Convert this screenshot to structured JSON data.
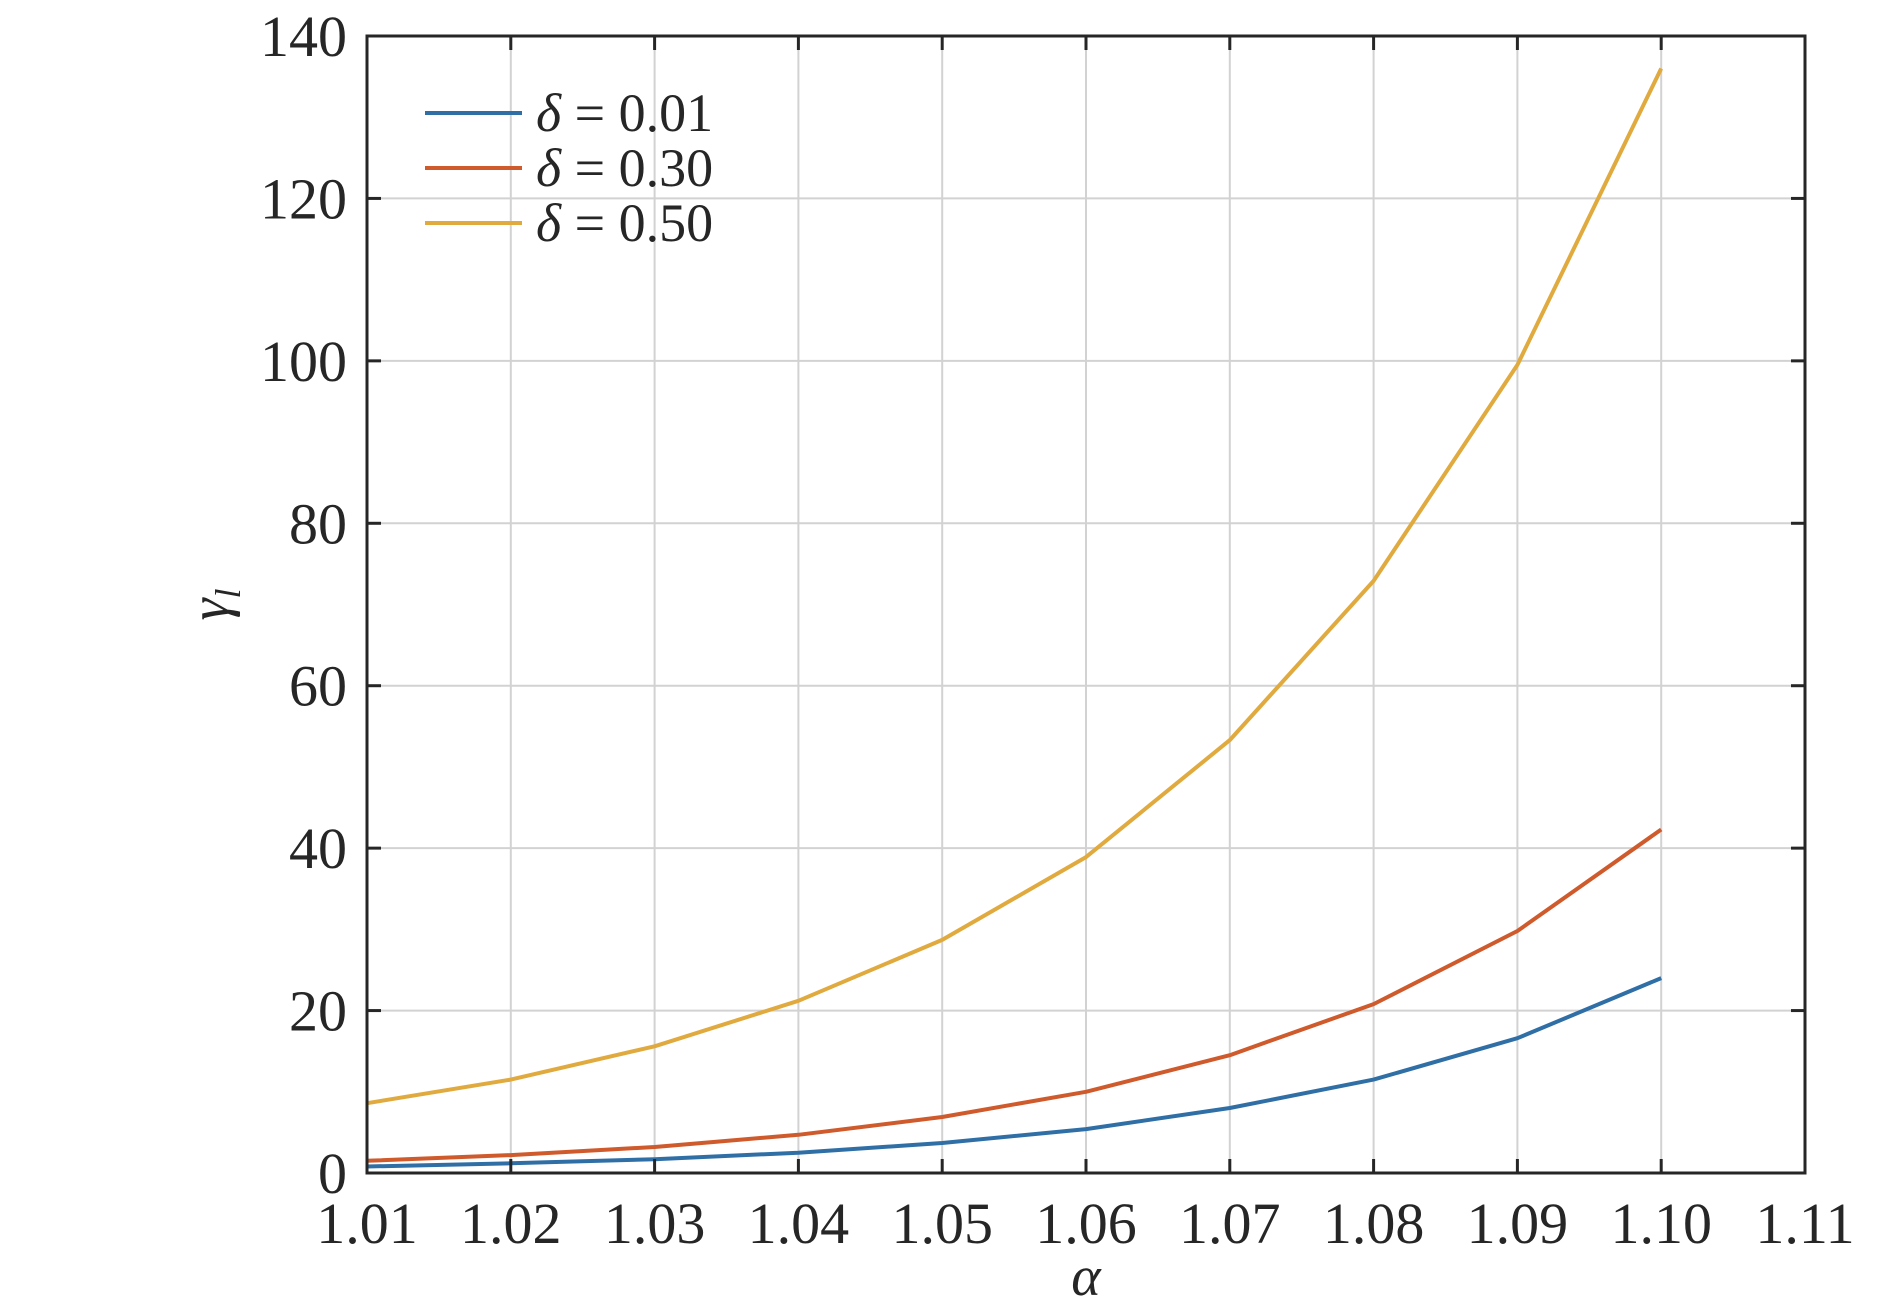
{
  "chart_data": {
    "type": "line",
    "x": [
      1.01,
      1.02,
      1.03,
      1.04,
      1.05,
      1.06,
      1.07,
      1.08,
      1.09,
      1.1
    ],
    "series": [
      {
        "name": "δ = 0.01",
        "symbol": "δ",
        "value_label": " = 0.01",
        "color": "#2f6fa6",
        "values": [
          0.8,
          1.2,
          1.7,
          2.5,
          3.7,
          5.4,
          8.0,
          11.5,
          16.6,
          24.0
        ]
      },
      {
        "name": "δ = 0.30",
        "symbol": "δ",
        "value_label": " = 0.30",
        "color": "#cf5a2c",
        "values": [
          1.5,
          2.2,
          3.2,
          4.7,
          6.9,
          10.0,
          14.5,
          20.8,
          29.8,
          42.3
        ]
      },
      {
        "name": "δ = 0.50",
        "symbol": "δ",
        "value_label": " = 0.50",
        "color": "#e0aa3e",
        "values": [
          8.6,
          11.5,
          15.6,
          21.2,
          28.7,
          38.9,
          53.3,
          72.9,
          99.5,
          136.0
        ]
      }
    ],
    "xlabel": "α",
    "ylabel_main": "γ",
    "ylabel_sub": "l",
    "xlim": [
      1.01,
      1.11
    ],
    "ylim": [
      0,
      140
    ],
    "xticks": [
      "1.01",
      "1.02",
      "1.03",
      "1.04",
      "1.05",
      "1.06",
      "1.07",
      "1.08",
      "1.09",
      "1.10",
      "1.11"
    ],
    "yticks": [
      "0",
      "20",
      "40",
      "60",
      "80",
      "100",
      "120",
      "140"
    ],
    "grid": true,
    "legend_position": "top-left"
  }
}
